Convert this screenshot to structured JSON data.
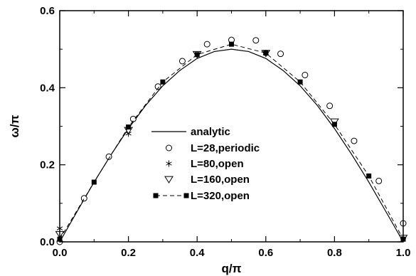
{
  "chart_data": {
    "type": "scatter",
    "xlabel": "q/π",
    "ylabel": "ω/π",
    "xlim": [
      0,
      1
    ],
    "ylim": [
      0,
      0.6
    ],
    "x_ticks": [
      "0.0",
      "0.2",
      "0.4",
      "0.6",
      "0.8",
      "1.0"
    ],
    "y_ticks": [
      "0.0",
      "0.2",
      "0.4",
      "0.6"
    ],
    "legend_position": "center",
    "series": [
      {
        "name": "analytic",
        "style": "solid-line",
        "x": [
          0.0,
          0.05,
          0.1,
          0.15,
          0.2,
          0.25,
          0.3,
          0.35,
          0.4,
          0.45,
          0.5,
          0.55,
          0.6,
          0.65,
          0.7,
          0.75,
          0.8,
          0.85,
          0.9,
          0.95,
          1.0
        ],
        "y": [
          0.0,
          0.078,
          0.155,
          0.227,
          0.294,
          0.354,
          0.405,
          0.445,
          0.476,
          0.494,
          0.5,
          0.494,
          0.476,
          0.445,
          0.405,
          0.354,
          0.294,
          0.227,
          0.155,
          0.078,
          0.0
        ]
      },
      {
        "name": "L=28,periodic",
        "style": "open-circle",
        "x": [
          0.0,
          0.071,
          0.143,
          0.214,
          0.286,
          0.357,
          0.429,
          0.5,
          0.571,
          0.643,
          0.714,
          0.786,
          0.857,
          0.929,
          1.0
        ],
        "y": [
          0.0,
          0.113,
          0.221,
          0.319,
          0.403,
          0.469,
          0.513,
          0.524,
          0.523,
          0.488,
          0.433,
          0.353,
          0.262,
          0.158,
          0.048
        ]
      },
      {
        "name": "L=80,open",
        "style": "asterisk",
        "x": [
          0.0,
          0.2,
          0.6,
          1.0
        ],
        "y": [
          0.035,
          0.281,
          0.49,
          0.012
        ]
      },
      {
        "name": "L=160,open",
        "style": "open-triangle",
        "x": [
          0.0,
          0.2,
          0.4,
          0.6,
          0.8,
          1.0
        ],
        "y": [
          0.02,
          0.29,
          0.487,
          0.49,
          0.312,
          0.01
        ]
      },
      {
        "name": "L=320,open",
        "style": "filled-square-dashed",
        "x": [
          0.0,
          0.1,
          0.2,
          0.3,
          0.4,
          0.5,
          0.6,
          0.7,
          0.8,
          0.9,
          1.0
        ],
        "y": [
          0.007,
          0.155,
          0.298,
          0.415,
          0.486,
          0.513,
          0.49,
          0.415,
          0.305,
          0.171,
          0.007
        ]
      }
    ]
  }
}
